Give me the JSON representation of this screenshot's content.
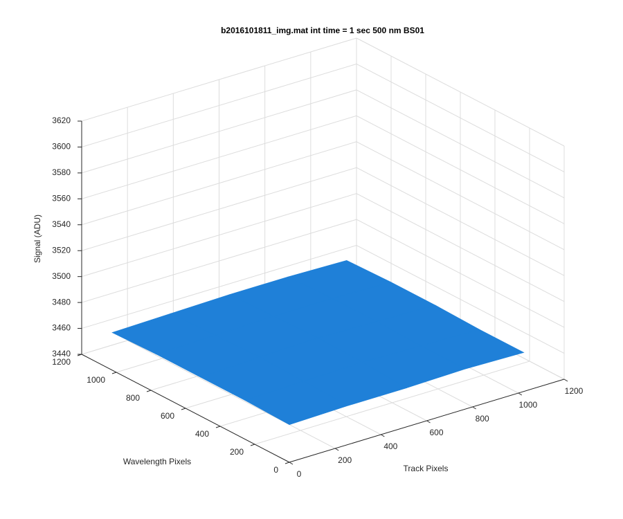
{
  "chart_data": {
    "type": "surface",
    "title": "b2016101811_img.mat int time = 1 sec  500 nm BS01",
    "xlabel": "Track Pixels",
    "ylabel": "Wavelength Pixels",
    "zlabel": "Signal (ADU)",
    "x": [
      0,
      256,
      512,
      768,
      1024
    ],
    "y": [
      0,
      256,
      512,
      768,
      1024
    ],
    "z": [
      [
        3469,
        3470,
        3470,
        3471,
        3470
      ],
      [
        3470,
        3471,
        3472,
        3471,
        3470
      ],
      [
        3470,
        3472,
        3473,
        3472,
        3471
      ],
      [
        3470,
        3471,
        3472,
        3472,
        3471
      ],
      [
        3469,
        3470,
        3471,
        3471,
        3470
      ]
    ],
    "color": "#1f80d8",
    "xlim": [
      0,
      1200
    ],
    "ylim": [
      0,
      1200
    ],
    "zlim": [
      3440,
      3620
    ],
    "xticks": [
      0,
      200,
      400,
      600,
      800,
      1000,
      1200
    ],
    "yticks": [
      0,
      200,
      400,
      600,
      800,
      1000,
      1200
    ],
    "zticks": [
      3440,
      3460,
      3480,
      3500,
      3520,
      3540,
      3560,
      3580,
      3600,
      3620
    ],
    "grid": true
  }
}
